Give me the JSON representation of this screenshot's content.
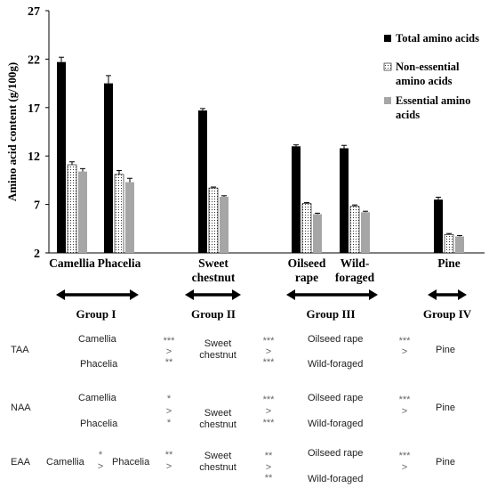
{
  "chart_data": {
    "type": "bar",
    "ylabel": "Amino acid content (g/100g)",
    "ylim": [
      2,
      27
    ],
    "yticks": [
      2,
      7,
      12,
      17,
      22,
      27
    ],
    "categories": [
      {
        "lines": [
          "Camellia"
        ]
      },
      {
        "lines": [
          "Phacelia"
        ]
      },
      {
        "lines": [
          "Sweet",
          "chestnut"
        ]
      },
      {
        "lines": [
          "Oilseed",
          "rape"
        ]
      },
      {
        "lines": [
          "Wild-",
          "foraged"
        ]
      },
      {
        "lines": [
          "Pine"
        ]
      }
    ],
    "series": [
      {
        "name": "Total amino acids",
        "color": "#000000",
        "pattern": "solid",
        "values": [
          21.7,
          19.5,
          16.7,
          13.0,
          12.8,
          7.5
        ],
        "errors": [
          0.5,
          0.8,
          0.2,
          0.15,
          0.3,
          0.25
        ]
      },
      {
        "name": "Non-essential amino acids",
        "color": "#ffffff",
        "pattern": "dotted",
        "values": [
          11.1,
          10.1,
          8.7,
          7.1,
          6.8,
          3.9
        ],
        "errors": [
          0.3,
          0.4,
          0.1,
          0.1,
          0.15,
          0.1
        ]
      },
      {
        "name": "Essential amino acids",
        "color": "#a6a6a6",
        "pattern": "solid",
        "values": [
          10.4,
          9.3,
          7.8,
          6.0,
          6.2,
          3.7
        ],
        "errors": [
          0.3,
          0.4,
          0.1,
          0.1,
          0.1,
          0.1
        ]
      }
    ],
    "legend": {
      "position": "top-right",
      "entries": [
        {
          "lines": [
            "Total amino acids"
          ]
        },
        {
          "lines": [
            "Non-essential",
            "amino acids"
          ]
        },
        {
          "lines": [
            "Essential amino",
            "acids"
          ]
        }
      ]
    },
    "groups": [
      {
        "label": "Group I"
      },
      {
        "label": "Group II"
      },
      {
        "label": "Group III"
      },
      {
        "label": "Group IV"
      }
    ]
  },
  "comparisons": {
    "TAA": {
      "label": "TAA",
      "g1": [
        "Camellia",
        "Phacelia"
      ],
      "sig12": [
        "***",
        ">",
        "**"
      ],
      "g2": [
        "Sweet",
        "chestnut"
      ],
      "sig23": [
        "***",
        ">",
        "***"
      ],
      "g3": [
        "Oilseed rape",
        "Wild-foraged"
      ],
      "sig34": [
        "***",
        ">"
      ],
      "g4": "Pine"
    },
    "NAA": {
      "label": "NAA",
      "g1": [
        "Camellia",
        "Phacelia"
      ],
      "sig12": [
        "*",
        ">",
        "*"
      ],
      "g2": [
        "Sweet",
        "chestnut"
      ],
      "sig23": [
        "***",
        ">",
        "***"
      ],
      "g3": [
        "Oilseed rape",
        "Wild-foraged"
      ],
      "sig34": [
        "***",
        ">"
      ],
      "g4": "Pine"
    },
    "EAA": {
      "label": "EAA",
      "g1a": "Camellia",
      "sig1": [
        "*",
        ">"
      ],
      "g1b": "Phacelia",
      "sig12": [
        "**",
        ">"
      ],
      "g2": [
        "Sweet",
        "chestnut"
      ],
      "sig23": [
        "**",
        ">",
        "**"
      ],
      "g3": [
        "Oilseed rape",
        "Wild-foraged"
      ],
      "sig34": [
        "***",
        ">"
      ],
      "g4": "Pine"
    }
  }
}
